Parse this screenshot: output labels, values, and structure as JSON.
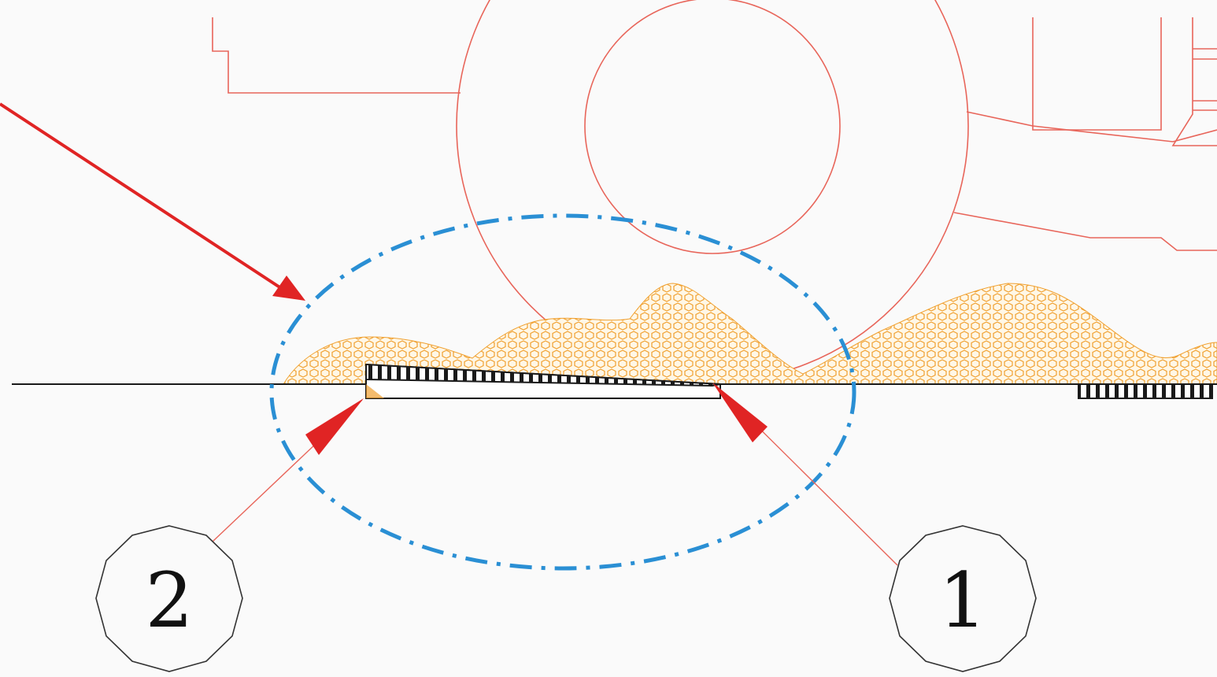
{
  "diagram": {
    "colors": {
      "background": "#fafafa",
      "mechanism_outline": "#e8655a",
      "arrow": "#e02424",
      "material": "#f0a030",
      "highlight_ellipse": "#2a8fd4",
      "ground_line": "#1a1a1a",
      "callout_outline": "#333333"
    },
    "callouts": [
      {
        "id": "callout-1",
        "label": "1"
      },
      {
        "id": "callout-2",
        "label": "2"
      }
    ]
  }
}
